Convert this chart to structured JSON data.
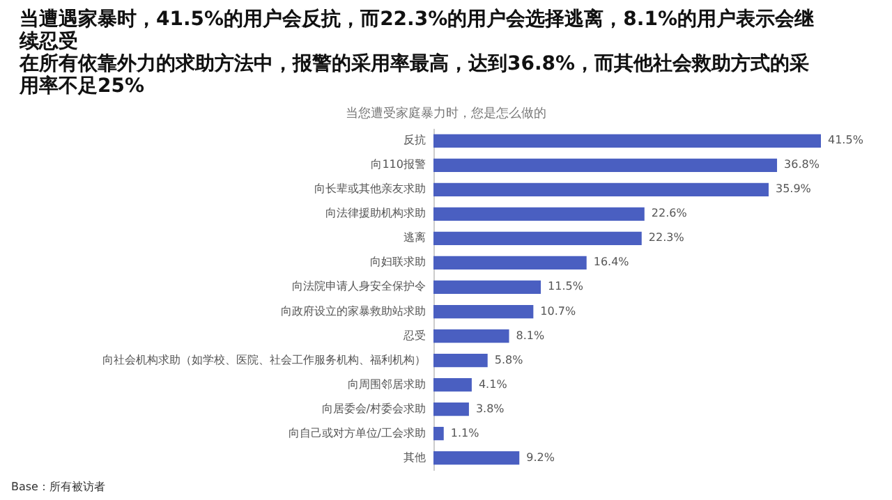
{
  "chart_data": {
    "type": "bar",
    "orientation": "horizontal",
    "title": "当遭遇家暴时，41.5%的用户会反抗，而22.3%的用户会选择逃离，8.1%的用户表示会继续忍受",
    "subtitle": "当您遭受家庭暴力时，您是怎么做的",
    "categories": [
      "反抗",
      "向110报警",
      "向长辈或其他亲友求助",
      "向法律援助机构求助",
      "逃离",
      "向妇联求助",
      "向法院申请人身安全保护令",
      "向政府设立的家暴救助站求助",
      "忍受",
      "向社会机构求助（如学校、医院、社会工作服务机构、福利机构）",
      "向周围邻居求助",
      "向居委会/村委会求助",
      "向自己或对方单位/工会求助",
      "其他"
    ],
    "values": [
      41.5,
      36.8,
      35.9,
      22.6,
      22.3,
      16.4,
      11.5,
      10.7,
      8.1,
      5.8,
      4.1,
      3.8,
      1.1,
      9.2
    ],
    "value_labels": [
      "41.5%",
      "36.8%",
      "35.9%",
      "22.6%",
      "22.3%",
      "16.4%",
      "11.5%",
      "10.7%",
      "8.1%",
      "5.8%",
      "4.1%",
      "3.8%",
      "1.1%",
      "9.2%"
    ],
    "color": "#4a5fc1",
    "annotations": [
      "在所有依靠外力的求助方法中，报警的采用率最高，达到36.8%，而其他社会救助方式的采用率不足25%",
      "Base：所有被访者"
    ]
  }
}
